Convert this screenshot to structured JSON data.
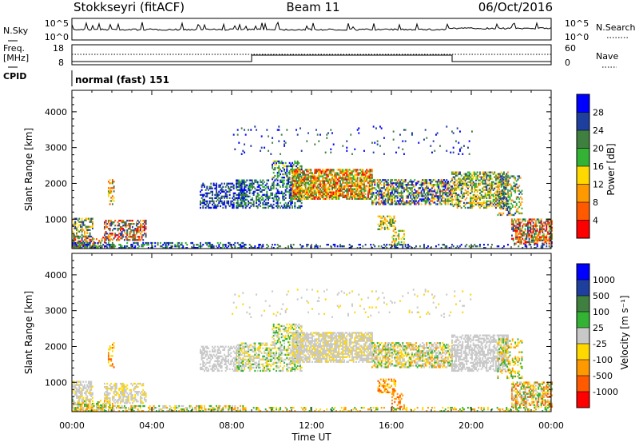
{
  "header": {
    "station": "Stokkseyri (fitACF)",
    "beam": "Beam 11",
    "date": "06/Oct/2016"
  },
  "noise_panel": {
    "left_label": "N.Sky",
    "right_label": "N.Search",
    "left_ticks": [
      "10^5",
      "10^0"
    ],
    "right_ticks": [
      "10^5",
      "10^0"
    ]
  },
  "freq_panel": {
    "left_label_1": "Freq.",
    "left_label_2": "[MHz]",
    "left_ticks": [
      "18",
      "8"
    ],
    "right_label": "Nave",
    "right_ticks": [
      "60",
      "0"
    ]
  },
  "cpid": {
    "label": "CPID",
    "value": "normal (fast) 151"
  },
  "colors": {
    "power_scale": [
      "#0000ff",
      "#1f3f9f",
      "#3f7f3f",
      "#33b233",
      "#ffd800",
      "#ff9900",
      "#ff5a00",
      "#ff0000"
    ],
    "velocity_scale": [
      "#0000ff",
      "#1f3f9f",
      "#3f7f3f",
      "#33b233",
      "#c8c8c8",
      "#ffd800",
      "#ff9900",
      "#ff5a00",
      "#ff0000"
    ]
  },
  "chart_data": [
    {
      "type": "heatmap",
      "title": "",
      "xlabel": "",
      "ylabel": "Slant Range [km]",
      "ylim": [
        180,
        4600
      ],
      "yticks": [
        "1000",
        "2000",
        "3000",
        "4000"
      ],
      "colorbar_label": "Power [dB]",
      "colorbar_ticks": [
        "4",
        "8",
        "12",
        "16",
        "20",
        "24",
        "28"
      ],
      "grid": false
    },
    {
      "type": "heatmap",
      "title": "",
      "xlabel": "Time UT",
      "ylabel": "Slant Range [km]",
      "xticks": [
        "00:00",
        "04:00",
        "08:00",
        "12:00",
        "16:00",
        "20:00",
        "00:00"
      ],
      "ylim": [
        180,
        4600
      ],
      "yticks": [
        "1000",
        "2000",
        "3000",
        "4000"
      ],
      "colorbar_label": "Velocity [m s⁻¹]",
      "colorbar_ticks": [
        "1000",
        "500",
        "100",
        "25",
        "-25",
        "-100",
        "-500",
        "-1000"
      ],
      "grid": false
    }
  ]
}
